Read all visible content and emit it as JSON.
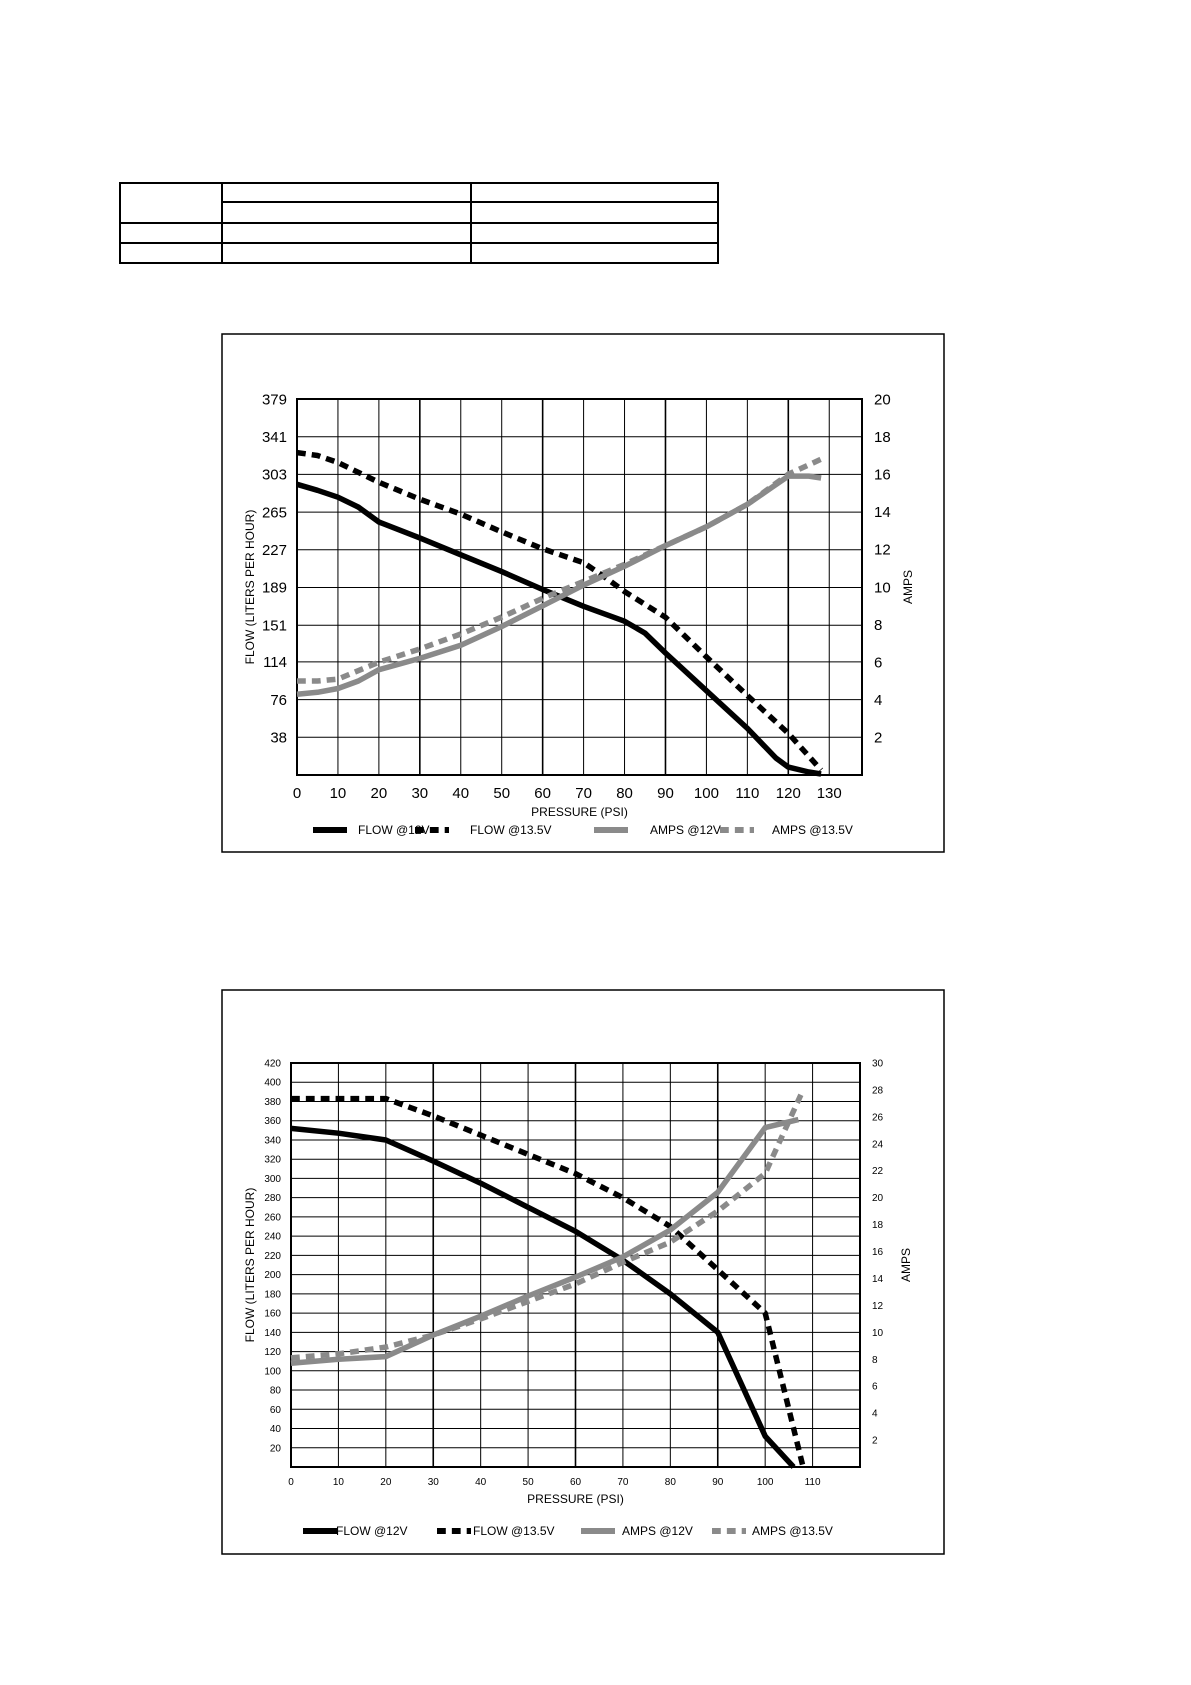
{
  "chart_data": [
    {
      "type": "line",
      "title": "",
      "xlabel": "PRESSURE (PSI)",
      "ylabel": "FLOW (LITERS PER HOUR)",
      "y2label": "AMPS",
      "xlim": [
        0,
        138
      ],
      "ylim": [
        0,
        379
      ],
      "y2lim": [
        0,
        20
      ],
      "x_ticks": [
        0,
        10,
        20,
        30,
        40,
        50,
        60,
        70,
        80,
        90,
        100,
        110,
        120,
        130
      ],
      "y_ticks": [
        38,
        76,
        114,
        151,
        189,
        227,
        265,
        303,
        341,
        379
      ],
      "y2_ticks": [
        2,
        4,
        6,
        8,
        10,
        12,
        14,
        16,
        18,
        20
      ],
      "grid": true,
      "legend_position": "bottom",
      "series": [
        {
          "name": "FLOW @12V",
          "axis": "left",
          "color": "#000000",
          "style": "solid",
          "x": [
            0,
            5,
            10,
            15,
            20,
            30,
            40,
            50,
            60,
            70,
            80,
            85,
            90,
            100,
            110,
            117,
            120,
            125,
            128
          ],
          "y": [
            293,
            287,
            280,
            270,
            255,
            239,
            222,
            205,
            187,
            170,
            155,
            143,
            123,
            85,
            47,
            17,
            8,
            3,
            1
          ]
        },
        {
          "name": "FLOW @13.5V",
          "axis": "left",
          "color": "#000000",
          "style": "dotted",
          "x": [
            0,
            5,
            10,
            20,
            30,
            40,
            50,
            60,
            70,
            75,
            80,
            90,
            100,
            110,
            120,
            128
          ],
          "y": [
            325,
            322,
            315,
            295,
            278,
            263,
            245,
            228,
            214,
            200,
            185,
            159,
            119,
            80,
            42,
            5
          ]
        },
        {
          "name": "AMPS @12V",
          "axis": "right",
          "color": "#8a8a8a",
          "style": "solid",
          "x": [
            0,
            5,
            10,
            15,
            20,
            30,
            40,
            50,
            60,
            70,
            80,
            90,
            100,
            110,
            116,
            120,
            125,
            128
          ],
          "y": [
            4.3,
            4.4,
            4.6,
            5.0,
            5.6,
            6.2,
            6.9,
            7.9,
            9.0,
            10.1,
            11.1,
            12.2,
            13.2,
            14.4,
            15.3,
            15.9,
            15.9,
            15.8
          ]
        },
        {
          "name": "AMPS @13.5V",
          "axis": "right",
          "color": "#8a8a8a",
          "style": "dotted",
          "x": [
            0,
            5,
            10,
            20,
            30,
            40,
            50,
            60,
            70,
            80,
            90,
            100,
            110,
            120,
            128
          ],
          "y": [
            5.0,
            5.0,
            5.1,
            6.0,
            6.7,
            7.5,
            8.4,
            9.4,
            10.3,
            11.2,
            12.2,
            13.2,
            14.4,
            16.0,
            16.8
          ]
        }
      ]
    },
    {
      "type": "line",
      "title": "",
      "xlabel": "PRESSURE (PSI)",
      "ylabel": "FLOW (LITERS PER HOUR)",
      "y2label": "AMPS",
      "xlim": [
        0,
        120
      ],
      "ylim": [
        0,
        420
      ],
      "y2lim": [
        0,
        30
      ],
      "x_ticks": [
        0,
        10,
        20,
        30,
        40,
        50,
        60,
        70,
        80,
        90,
        100,
        110
      ],
      "y_ticks": [
        20,
        40,
        60,
        80,
        100,
        120,
        140,
        160,
        180,
        200,
        220,
        240,
        260,
        280,
        300,
        320,
        340,
        360,
        380,
        400,
        420
      ],
      "y2_ticks": [
        2,
        4,
        6,
        8,
        10,
        12,
        14,
        16,
        18,
        20,
        22,
        24,
        26,
        28,
        30
      ],
      "grid": true,
      "legend_position": "bottom",
      "series": [
        {
          "name": "FLOW @12V",
          "axis": "left",
          "color": "#000000",
          "style": "solid",
          "x": [
            0,
            10,
            20,
            30,
            40,
            50,
            60,
            70,
            80,
            90,
            100,
            106
          ],
          "y": [
            352,
            347,
            340,
            318,
            295,
            270,
            245,
            215,
            180,
            140,
            32,
            0
          ]
        },
        {
          "name": "FLOW @13.5V",
          "axis": "left",
          "color": "#000000",
          "style": "dotted",
          "x": [
            0,
            10,
            20,
            30,
            40,
            50,
            60,
            70,
            80,
            90,
            100,
            108
          ],
          "y": [
            383,
            383,
            383,
            365,
            345,
            325,
            305,
            280,
            250,
            205,
            160,
            0
          ]
        },
        {
          "name": "AMPS @12V",
          "axis": "right",
          "color": "#8a8a8a",
          "style": "solid",
          "x": [
            0,
            10,
            20,
            30,
            40,
            50,
            60,
            70,
            80,
            90,
            100,
            107
          ],
          "y": [
            7.7,
            8.0,
            8.2,
            9.8,
            11.2,
            12.7,
            14.1,
            15.6,
            17.6,
            20.4,
            25.2,
            25.8
          ]
        },
        {
          "name": "AMPS @13.5V",
          "axis": "right",
          "color": "#8a8a8a",
          "style": "dotted",
          "x": [
            0,
            10,
            20,
            30,
            40,
            50,
            60,
            70,
            80,
            90,
            100,
            108
          ],
          "y": [
            8.1,
            8.4,
            8.9,
            9.8,
            11.0,
            12.3,
            13.6,
            15.2,
            16.7,
            19.0,
            21.8,
            28.0
          ]
        }
      ]
    }
  ]
}
